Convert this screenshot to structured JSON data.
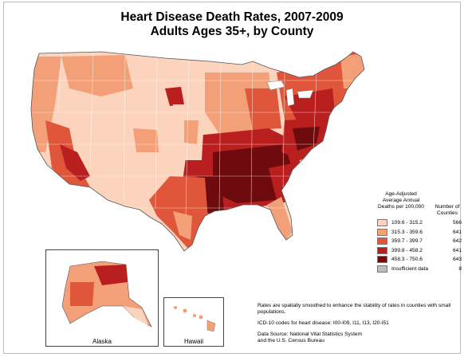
{
  "title": {
    "line1": "Heart Disease Death Rates, 2007-2009",
    "line2": "Adults Ages 35+, by County"
  },
  "legend": {
    "heading": [
      "Age-Adjusted",
      "Average Annual",
      "Deaths per 100,000"
    ],
    "count_heading": [
      "Number of",
      "Counties"
    ],
    "classes": [
      {
        "range": "109.6 - 315.2",
        "count": "566",
        "color": "#fcd3bd"
      },
      {
        "range": "315.3 - 359.6",
        "count": "641",
        "color": "#f3a079"
      },
      {
        "range": "359.7 - 399.7",
        "count": "642",
        "color": "#e0563a"
      },
      {
        "range": "399.8 - 458.2",
        "count": "641",
        "color": "#b91f1e"
      },
      {
        "range": "458.3 - 750.6",
        "count": "643",
        "color": "#6e0b0f"
      },
      {
        "range": "Insufficient data",
        "count": "8",
        "color": "#bdbdbd"
      }
    ]
  },
  "insets": {
    "alaska_label": "Alaska",
    "hawaii_label": "Hawaii"
  },
  "notes": {
    "smoothing": "Rates are spatially smoothed to enhance the stability of rates in counties with small populations.",
    "icd": "ICD-10 codes for heart disease: I00-I09, I11, I13, I20-I51",
    "source_line1": "Data Source: National Vital Statistics System",
    "source_line2": "and the U.S. Census Bureau"
  }
}
